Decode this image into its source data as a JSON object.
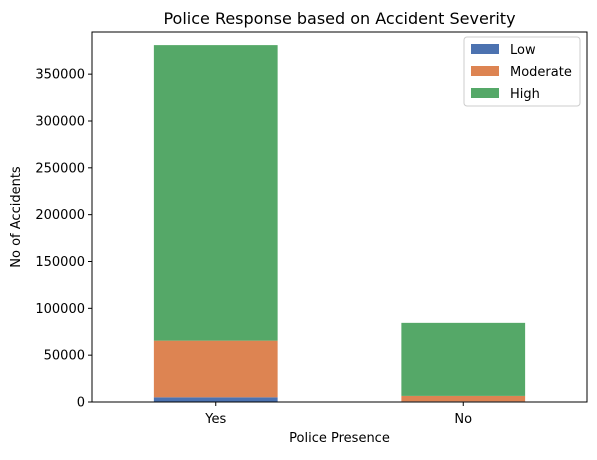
{
  "chart_data": {
    "type": "bar",
    "stacked": true,
    "title": "Police Response based on Accident Severity",
    "xlabel": "Police Presence",
    "ylabel": "No of Accidents",
    "categories": [
      "Yes",
      "No"
    ],
    "series": [
      {
        "name": "Low",
        "color": "#4c72b0",
        "values": [
          5000,
          700
        ]
      },
      {
        "name": "Moderate",
        "color": "#dd8452",
        "values": [
          60500,
          5800
        ]
      },
      {
        "name": "High",
        "color": "#55a868",
        "values": [
          315500,
          78000
        ]
      }
    ],
    "ylim": [
      0,
      395000
    ],
    "yticks": [
      "0",
      "50000",
      "100000",
      "150000",
      "200000",
      "250000",
      "300000",
      "350000"
    ],
    "legend": "top-right",
    "grid": false
  }
}
